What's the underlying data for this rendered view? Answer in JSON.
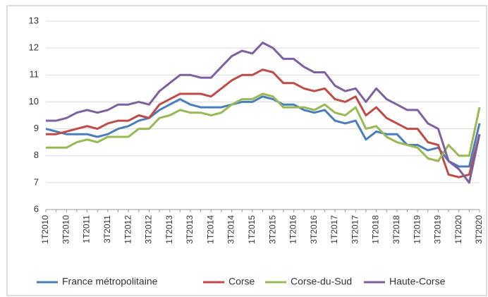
{
  "chart_data": {
    "type": "line",
    "categories": [
      "1T2010",
      null,
      "3T2010",
      null,
      "1T2011",
      null,
      "3T2011",
      null,
      "1T2012",
      null,
      "3T2012",
      null,
      "1T2013",
      null,
      "3T2013",
      null,
      "1T2014",
      null,
      "3T2014",
      null,
      "1T2015",
      null,
      "3T2015",
      null,
      "1T2016",
      null,
      "3T2016",
      null,
      "1T2017",
      null,
      "3T2017",
      null,
      "1T2018",
      null,
      "3T2018",
      null,
      "1T2019",
      null,
      "3T2019",
      null,
      "1T2020",
      null,
      "3T2020"
    ],
    "series": [
      {
        "name": "France métropolitaine",
        "color": "#4a7ebb",
        "values": [
          9.0,
          8.9,
          8.8,
          8.8,
          8.8,
          8.7,
          8.8,
          9.0,
          9.1,
          9.3,
          9.4,
          9.7,
          9.9,
          10.1,
          9.9,
          9.8,
          9.8,
          9.8,
          9.9,
          10.0,
          10.0,
          10.2,
          10.1,
          9.9,
          9.9,
          9.7,
          9.6,
          9.7,
          9.3,
          9.2,
          9.3,
          8.6,
          8.9,
          8.8,
          8.8,
          8.4,
          8.4,
          8.2,
          8.3,
          7.8,
          7.6,
          7.6,
          9.2
        ]
      },
      {
        "name": "Corse",
        "color": "#be4b48",
        "values": [
          8.8,
          8.8,
          8.9,
          9.0,
          9.1,
          9.0,
          9.2,
          9.3,
          9.3,
          9.5,
          9.4,
          9.9,
          10.1,
          10.3,
          10.3,
          10.3,
          10.2,
          10.5,
          10.8,
          11.0,
          11.0,
          11.2,
          11.1,
          10.7,
          10.7,
          10.5,
          10.4,
          10.5,
          10.1,
          10.0,
          10.2,
          9.5,
          9.8,
          9.4,
          9.2,
          9.0,
          9.0,
          8.5,
          8.4,
          7.3,
          7.2,
          7.3,
          8.8
        ]
      },
      {
        "name": "Corse-du-Sud",
        "color": "#98b954",
        "values": [
          8.3,
          8.3,
          8.3,
          8.5,
          8.6,
          8.5,
          8.7,
          8.7,
          8.7,
          9.0,
          9.0,
          9.4,
          9.5,
          9.7,
          9.6,
          9.6,
          9.5,
          9.6,
          9.9,
          10.1,
          10.1,
          10.3,
          10.2,
          9.8,
          9.8,
          9.8,
          9.7,
          9.9,
          9.6,
          9.5,
          9.8,
          9.0,
          9.1,
          8.7,
          8.5,
          8.4,
          8.3,
          7.9,
          7.8,
          8.4,
          8.0,
          8.0,
          9.8
        ]
      },
      {
        "name": "Haute-Corse",
        "color": "#7d60a0",
        "values": [
          9.3,
          9.3,
          9.4,
          9.6,
          9.7,
          9.6,
          9.7,
          9.9,
          9.9,
          10.0,
          9.9,
          10.4,
          10.7,
          11.0,
          11.0,
          10.9,
          10.9,
          11.3,
          11.7,
          11.9,
          11.8,
          12.2,
          12.0,
          11.6,
          11.6,
          11.3,
          11.1,
          11.1,
          10.6,
          10.4,
          10.5,
          10.0,
          10.5,
          10.1,
          9.9,
          9.7,
          9.7,
          9.2,
          9.0,
          7.8,
          7.5,
          7.0,
          8.8
        ]
      }
    ],
    "ylim": [
      6,
      13
    ],
    "yticks": [
      6,
      7,
      8,
      9,
      10,
      11,
      12,
      13
    ],
    "grid": true,
    "legend": "bottom"
  }
}
